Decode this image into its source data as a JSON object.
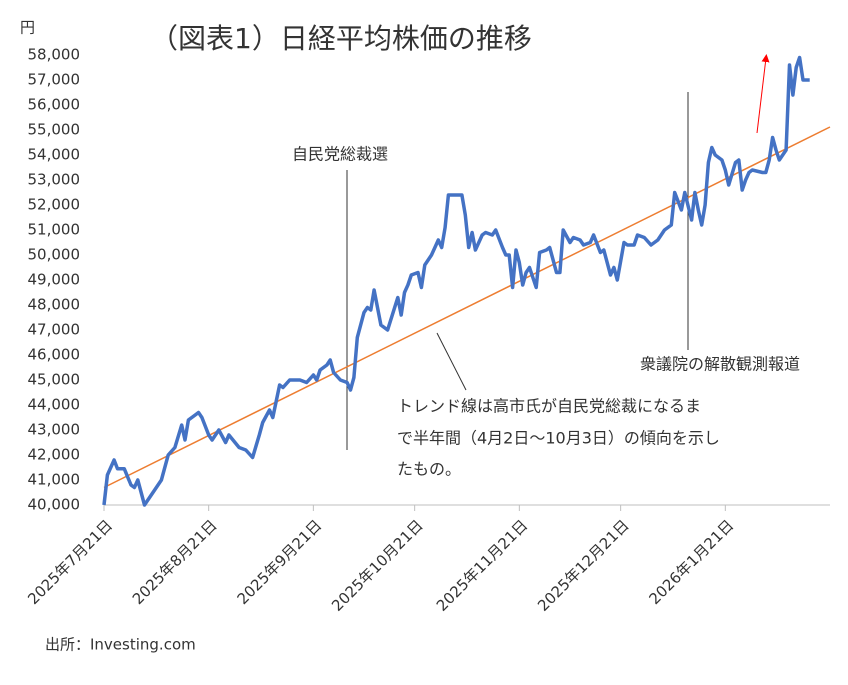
{
  "chart_data": {
    "type": "line",
    "title": "（図表1）日経平均株価の推移",
    "y_unit": "円",
    "source": "出所：Investing.com",
    "annotations": [
      "自民党総裁選",
      "衆議院の解散観測報道"
    ],
    "trend_note": [
      "トレンド線は高市氏が自民党総裁になるま",
      "で半年間（4月2日～10月3日）の傾向を示し",
      "たもの。"
    ],
    "xlim": [
      "2025-07-21",
      "2026-02-21"
    ],
    "xticks": [
      {
        "value": "2025-07-21",
        "label": "2025年7月21日"
      },
      {
        "value": "2025-08-21",
        "label": "2025年8月21日"
      },
      {
        "value": "2025-09-21",
        "label": "2025年9月21日"
      },
      {
        "value": "2025-10-21",
        "label": "2025年10月21日"
      },
      {
        "value": "2025-11-21",
        "label": "2025年11月21日"
      },
      {
        "value": "2025-12-21",
        "label": "2025年12月21日"
      },
      {
        "value": "2026-01-21",
        "label": "2026年1月21日"
      }
    ],
    "ylim": [
      40000,
      58000
    ],
    "yticks": [
      {
        "value": 40000,
        "label": "40,000"
      },
      {
        "value": 41000,
        "label": "41,000"
      },
      {
        "value": 42000,
        "label": "42,000"
      },
      {
        "value": 43000,
        "label": "43,000"
      },
      {
        "value": 44000,
        "label": "44,000"
      },
      {
        "value": 45000,
        "label": "45,000"
      },
      {
        "value": 46000,
        "label": "46,000"
      },
      {
        "value": 47000,
        "label": "47,000"
      },
      {
        "value": 48000,
        "label": "48,000"
      },
      {
        "value": 49000,
        "label": "49,000"
      },
      {
        "value": 50000,
        "label": "50,000"
      },
      {
        "value": 51000,
        "label": "51,000"
      },
      {
        "value": 52000,
        "label": "52,000"
      },
      {
        "value": 53000,
        "label": "53,000"
      },
      {
        "value": 54000,
        "label": "54,000"
      },
      {
        "value": 55000,
        "label": "55,000"
      },
      {
        "value": 56000,
        "label": "56,000"
      },
      {
        "value": 57000,
        "label": "57,000"
      },
      {
        "value": 58000,
        "label": "58,000"
      }
    ],
    "grid": false,
    "series": [
      {
        "color": "#4472c4",
        "x": [
          "2025-07-21",
          "2025-07-22",
          "2025-07-24",
          "2025-07-25",
          "2025-07-27",
          "2025-07-29",
          "2025-07-30",
          "2025-07-31",
          "2025-08-02",
          "2025-08-07",
          "2025-08-09",
          "2025-08-11",
          "2025-08-13",
          "2025-08-14",
          "2025-08-15",
          "2025-08-17",
          "2025-08-18",
          "2025-08-19",
          "2025-08-21",
          "2025-08-22",
          "2025-08-24",
          "2025-08-26",
          "2025-08-27",
          "2025-08-30",
          "2025-09-01",
          "2025-09-03",
          "2025-09-05",
          "2025-09-06",
          "2025-09-08",
          "2025-09-09",
          "2025-09-11",
          "2025-09-12",
          "2025-09-14",
          "2025-09-17",
          "2025-09-19",
          "2025-09-21",
          "2025-09-22",
          "2025-09-23",
          "2025-09-25",
          "2025-09-26",
          "2025-09-27",
          "2025-09-29",
          "2025-10-01",
          "2025-10-02",
          "2025-10-03",
          "2025-10-04",
          "2025-10-06",
          "2025-10-07",
          "2025-10-08",
          "2025-10-09",
          "2025-10-10",
          "2025-10-11",
          "2025-10-13",
          "2025-10-16",
          "2025-10-17",
          "2025-10-18",
          "2025-10-19",
          "2025-10-20",
          "2025-10-22",
          "2025-10-23",
          "2025-10-24",
          "2025-10-26",
          "2025-10-28",
          "2025-10-29",
          "2025-10-30",
          "2025-10-31",
          "2025-11-02",
          "2025-11-04",
          "2025-11-05",
          "2025-11-06",
          "2025-11-07",
          "2025-11-08",
          "2025-11-10",
          "2025-11-11",
          "2025-11-13",
          "2025-11-14",
          "2025-11-16",
          "2025-11-17",
          "2025-11-18",
          "2025-11-19",
          "2025-11-20",
          "2025-11-21",
          "2025-11-22",
          "2025-11-23",
          "2025-11-24",
          "2025-11-26",
          "2025-11-27",
          "2025-11-29",
          "2025-11-30",
          "2025-12-02",
          "2025-12-03",
          "2025-12-04",
          "2025-12-06",
          "2025-12-07",
          "2025-12-09",
          "2025-12-10",
          "2025-12-12",
          "2025-12-13",
          "2025-12-15",
          "2025-12-16",
          "2025-12-18",
          "2025-12-19",
          "2025-12-20",
          "2025-12-22",
          "2025-12-23",
          "2025-12-25",
          "2025-12-26",
          "2025-12-28",
          "2025-12-30",
          "2026-01-01",
          "2026-01-03",
          "2026-01-05",
          "2026-01-06",
          "2026-01-08",
          "2026-01-09",
          "2026-01-11",
          "2026-01-12",
          "2026-01-13",
          "2026-01-14",
          "2026-01-15",
          "2026-01-16",
          "2026-01-17",
          "2026-01-18",
          "2026-01-20",
          "2026-01-21",
          "2026-01-22",
          "2026-01-24",
          "2026-01-25",
          "2026-01-26",
          "2026-01-27",
          "2026-01-28",
          "2026-01-29",
          "2026-02-01",
          "2026-02-02",
          "2026-02-03",
          "2026-02-04",
          "2026-02-05",
          "2026-02-06",
          "2026-02-08",
          "2026-02-09",
          "2026-02-10",
          "2026-02-11",
          "2026-02-12",
          "2026-02-13",
          "2026-02-15"
        ],
        "values": [
          40000,
          41200,
          41800,
          41450,
          41450,
          40800,
          40700,
          41000,
          40000,
          41000,
          42000,
          42300,
          43200,
          42600,
          43400,
          43600,
          43700,
          43500,
          42800,
          42600,
          43000,
          42500,
          42800,
          42300,
          42200,
          41900,
          42800,
          43300,
          43800,
          43500,
          44800,
          44700,
          45000,
          45000,
          44900,
          45200,
          45000,
          45400,
          45600,
          45800,
          45300,
          45000,
          44900,
          44600,
          45100,
          46700,
          47700,
          47900,
          47800,
          48600,
          47900,
          47200,
          47000,
          48300,
          47600,
          48500,
          48800,
          49200,
          49300,
          48700,
          49600,
          50000,
          50600,
          50300,
          51100,
          52400,
          52400,
          52400,
          51600,
          50300,
          50900,
          50200,
          50800,
          50900,
          50800,
          51000,
          50300,
          50000,
          50000,
          48700,
          50200,
          49700,
          48800,
          49300,
          49500,
          48700,
          50100,
          50200,
          50300,
          49300,
          49300,
          51000,
          50500,
          50700,
          50600,
          50400,
          50500,
          50800,
          50100,
          50200,
          49200,
          49500,
          49000,
          50500,
          50400,
          50400,
          50800,
          50700,
          50400,
          50600,
          51000,
          51200,
          52500,
          51800,
          52500,
          51400,
          52500,
          51800,
          51200,
          52000,
          53700,
          54300,
          54000,
          53800,
          53400,
          52800,
          53700,
          53800,
          52600,
          53000,
          53300,
          53400,
          53300,
          53300,
          53800,
          54700,
          54200,
          53800,
          54200,
          57600,
          56400,
          57500,
          57900,
          57000,
          57000
        ]
      },
      {
        "color": "#ed7d31",
        "x": [
          "2025-07-21",
          "2026-02-21"
        ],
        "values": [
          40700,
          55120
        ]
      }
    ]
  }
}
